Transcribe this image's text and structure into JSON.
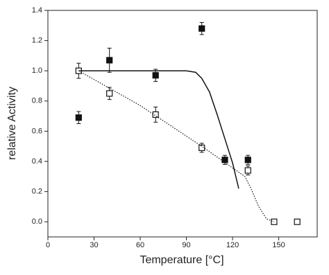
{
  "chart_data": {
    "type": "scatter",
    "xlabel": "Temperature [°C]",
    "ylabel": "relative Activity",
    "xlim": [
      0,
      175
    ],
    "ylim": [
      -0.1,
      1.4
    ],
    "xticks": [
      0,
      30,
      60,
      90,
      120,
      150
    ],
    "yticks": [
      {
        "value": 0,
        "label": "0.0"
      },
      {
        "value": 0.2,
        "label": "0.2"
      },
      {
        "value": 0.4,
        "label": "0.4"
      },
      {
        "value": 0.6,
        "label": "0.6"
      },
      {
        "value": 0.8,
        "label": "0.8"
      },
      {
        "value": 1,
        "label": "1.0"
      },
      {
        "value": 1.2,
        "label": "1.2"
      },
      {
        "value": 1.4,
        "label": "1.4"
      }
    ],
    "series": [
      {
        "type": "scatter",
        "marker": "filled",
        "color": "#111111",
        "x": [
          20,
          40,
          70,
          100,
          115,
          130
        ],
        "values": [
          0.69,
          1.07,
          0.97,
          1.28,
          0.41,
          0.41
        ],
        "errors": [
          0.04,
          0.08,
          0.04,
          0.04,
          0.03,
          0.03
        ]
      },
      {
        "type": "scatter",
        "marker": "open",
        "color": "#111111",
        "x": [
          20,
          40,
          70,
          100,
          130,
          147,
          162
        ],
        "values": [
          1.0,
          0.85,
          0.71,
          0.49,
          0.34,
          0.0,
          0.0
        ],
        "errors": [
          0.05,
          0.04,
          0.05,
          0.03,
          0.03,
          0,
          0
        ]
      },
      {
        "type": "line",
        "dash": "solid",
        "color": "#111111",
        "x": [
          20,
          90,
          96,
          100,
          105,
          110,
          115,
          120,
          124
        ],
        "values": [
          1.0,
          1.0,
          0.99,
          0.95,
          0.86,
          0.71,
          0.55,
          0.39,
          0.22
        ]
      },
      {
        "type": "line",
        "dash": "dotted",
        "color": "#111111",
        "x": [
          20,
          60,
          100,
          128,
          132,
          137,
          142,
          147
        ],
        "values": [
          1.0,
          0.77,
          0.5,
          0.3,
          0.22,
          0.1,
          0.02,
          0.0
        ]
      }
    ]
  }
}
